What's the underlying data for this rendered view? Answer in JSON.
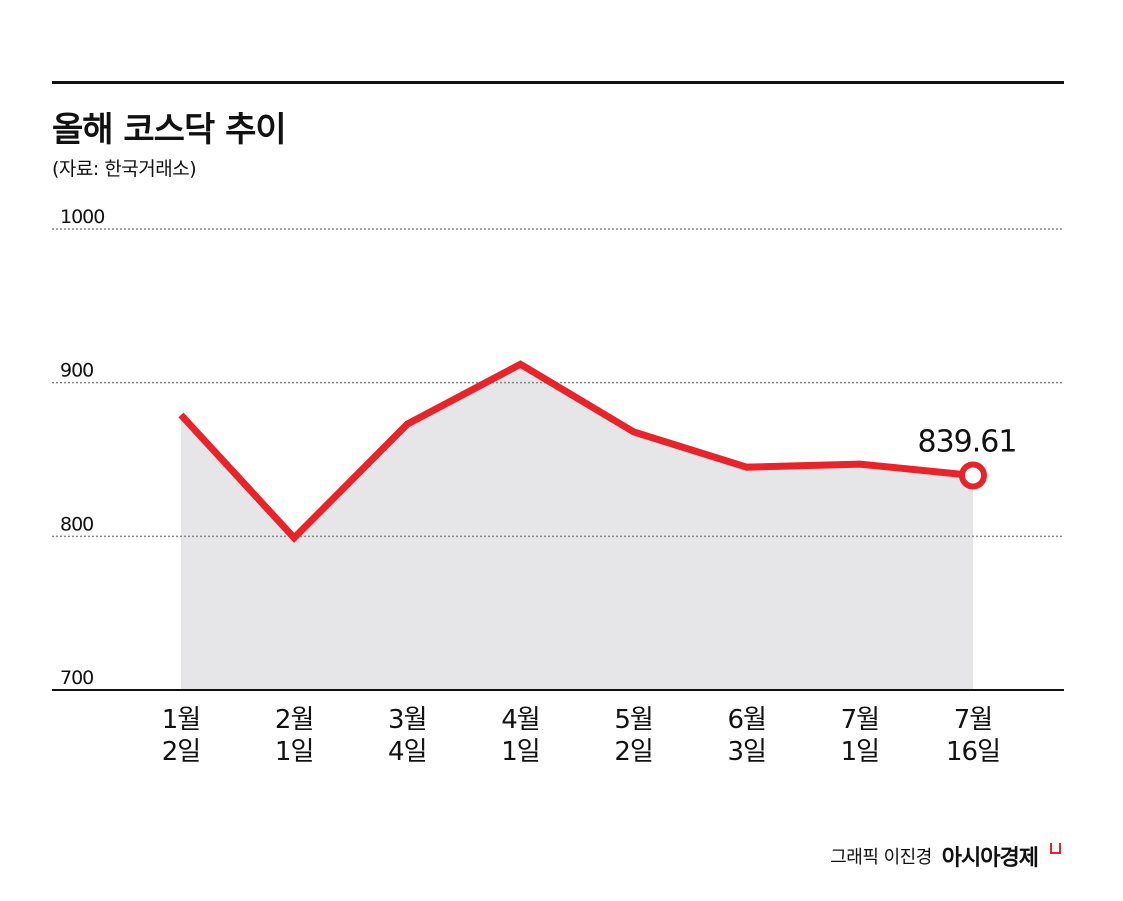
{
  "header": {
    "title": "올해 코스닥 추이",
    "source": "(자료: 한국거래소)"
  },
  "footer": {
    "credit": "그래픽 이진경",
    "brand": "아시아경제",
    "brand_icon": "publisher-mark-icon"
  },
  "colors": {
    "line": "#e8232a",
    "area": "#e6e6e8",
    "grid": "#888888",
    "text": "#111111"
  },
  "chart_data": {
    "type": "area",
    "title": "올해 코스닥 추이",
    "categories": [
      [
        "1월",
        "2일"
      ],
      [
        "2월",
        "1일"
      ],
      [
        "3월",
        "4일"
      ],
      [
        "4월",
        "1일"
      ],
      [
        "5월",
        "2일"
      ],
      [
        "6월",
        "3일"
      ],
      [
        "7월",
        "1일"
      ],
      [
        "7월",
        "16일"
      ]
    ],
    "values": [
      879,
      799,
      873,
      912,
      868,
      845,
      847,
      839.61
    ],
    "ylim": [
      700,
      1000
    ],
    "yticks": [
      "700",
      "800",
      "900",
      "1000"
    ],
    "grid": true,
    "annotation": {
      "text": "839.61",
      "index": 7
    }
  }
}
